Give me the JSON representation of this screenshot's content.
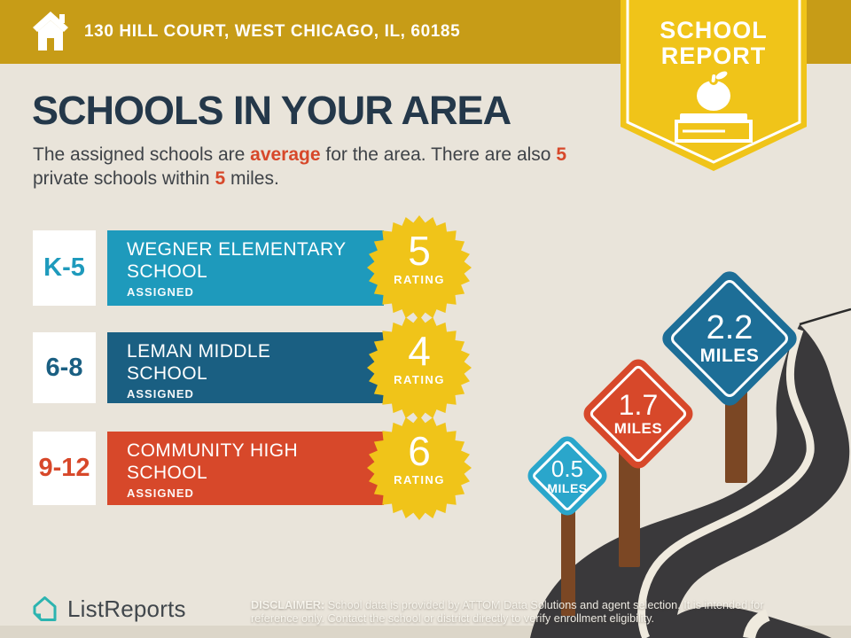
{
  "header": {
    "address": "130 HILL COURT, WEST CHICAGO, IL, 60185"
  },
  "ribbon": {
    "line1": "SCHOOL",
    "line2": "REPORT"
  },
  "page": {
    "title": "SCHOOLS IN YOUR AREA"
  },
  "subtitle": {
    "part1": "The assigned schools are ",
    "highlight1": "average",
    "part2": " for the area. There are also ",
    "highlight2": "5",
    "part3": " private schools within ",
    "highlight3": "5",
    "part4": " miles."
  },
  "schools": [
    {
      "grades": "K-5",
      "name": "WEGNER ELEMENTARY SCHOOL",
      "status": "ASSIGNED",
      "rating": "5",
      "rating_label": "RATING",
      "color": "#1e9abc"
    },
    {
      "grades": "6-8",
      "name": "LEMAN MIDDLE SCHOOL",
      "status": "ASSIGNED",
      "rating": "4",
      "rating_label": "RATING",
      "color": "#1a5f82"
    },
    {
      "grades": "9-12",
      "name": "COMMUNITY HIGH SCHOOL",
      "status": "ASSIGNED",
      "rating": "6",
      "rating_label": "RATING",
      "color": "#d7482a"
    }
  ],
  "distance_signs": [
    {
      "value": "0.5",
      "unit": "MILES",
      "color": "#2aa6cb"
    },
    {
      "value": "1.7",
      "unit": "MILES",
      "color": "#d7482a"
    },
    {
      "value": "2.2",
      "unit": "MILES",
      "color": "#1d6e97"
    }
  ],
  "footer": {
    "brand": "ListReports",
    "disclaimer_label": "DISCLAIMER:",
    "disclaimer_text": " School data is provided by ATTOM Data Solutions and agent selection. It is intended for reference only. Contact the school or district directly to verify enrollment eligibility."
  },
  "colors": {
    "header_gold": "#c79c17",
    "ribbon_yellow": "#f0c419",
    "burst_yellow": "#f0c419",
    "background": "#e9e4da",
    "title_navy": "#24384a",
    "accent_red": "#d7482a",
    "road_dark": "#3a393b",
    "post_brown": "#7b4724",
    "logo_teal": "#2cb4b0"
  }
}
